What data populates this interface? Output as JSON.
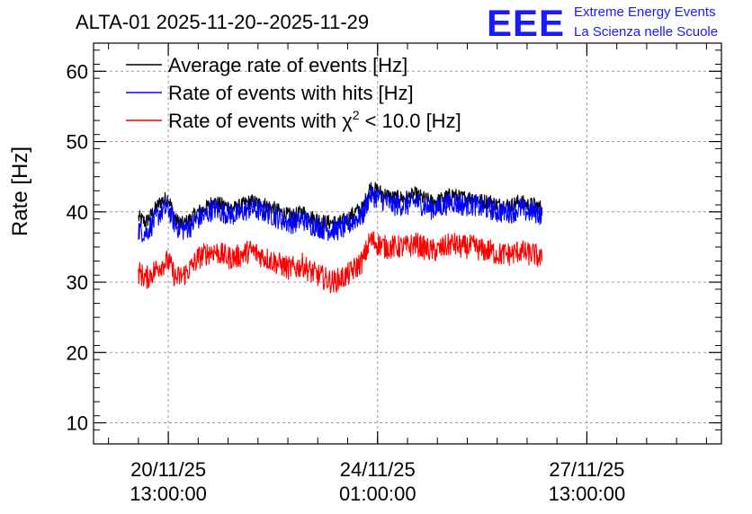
{
  "logo": {
    "mark": "EEE",
    "line1": "Extreme Energy Events",
    "line2": "La Scienza nelle Scuole"
  },
  "chart_data": {
    "type": "line",
    "title": "ALTA-01 2025-11-20--2025-11-29",
    "ylabel": "Rate [Hz]",
    "xlabel": "",
    "ylim": [
      7,
      64
    ],
    "yticks": [
      10,
      20,
      30,
      40,
      50,
      60
    ],
    "xlim_hours_from_start": [
      -18,
      234
    ],
    "x_tick_labels": [
      {
        "hours": 12,
        "date": "20/11/25",
        "time": "13:00:00"
      },
      {
        "hours": 96,
        "date": "24/11/25",
        "time": "01:00:00"
      },
      {
        "hours": 180,
        "date": "27/11/25",
        "time": "13:00:00"
      }
    ],
    "grid": true,
    "legend_position": "top-left",
    "sample_step_hours": 3,
    "series": [
      {
        "name": "Average rate of events [Hz]",
        "legend_prefix": "Average rate of events [Hz]",
        "legend_superscript": "",
        "legend_suffix": "",
        "color": "#000000",
        "noise": 1.1,
        "x_start": 0,
        "values": [
          39.2,
          38.5,
          40.0,
          41.5,
          42.0,
          38.8,
          38.2,
          39.0,
          40.0,
          40.5,
          41.5,
          41.0,
          40.8,
          40.5,
          41.0,
          41.5,
          41.2,
          41.0,
          40.5,
          40.0,
          39.5,
          39.5,
          40.0,
          39.2,
          39.0,
          38.5,
          38.5,
          38.5,
          39.0,
          40.0,
          40.5,
          43.5,
          43.0,
          42.5,
          42.0,
          42.0,
          42.0,
          42.5,
          42.0,
          41.5,
          41.5,
          42.0,
          42.5,
          42.0,
          42.0,
          42.0,
          41.5,
          41.5,
          41.0,
          41.0,
          41.0,
          41.5,
          41.0,
          41.0,
          40.5
        ]
      },
      {
        "name": "Rate of events with hits [Hz]",
        "legend_prefix": "Rate of events with hits [Hz]",
        "legend_superscript": "",
        "legend_suffix": "",
        "color": "#0000ff",
        "noise": 1.6,
        "x_start": 0,
        "values": [
          37.5,
          37.0,
          38.5,
          40.0,
          40.5,
          38.0,
          37.5,
          38.0,
          39.0,
          39.5,
          40.5,
          40.0,
          39.8,
          39.5,
          40.0,
          40.5,
          40.2,
          40.0,
          39.5,
          39.0,
          38.5,
          38.5,
          39.0,
          38.2,
          38.0,
          37.5,
          37.5,
          37.5,
          38.0,
          39.0,
          39.5,
          42.5,
          42.0,
          41.5,
          41.0,
          41.0,
          41.0,
          41.5,
          41.0,
          40.5,
          40.5,
          41.0,
          41.5,
          41.0,
          41.0,
          41.0,
          40.5,
          40.5,
          40.0,
          40.0,
          40.0,
          40.5,
          40.0,
          40.0,
          39.5
        ]
      },
      {
        "name": "Rate of events with χ² < 10.0 [Hz]",
        "legend_prefix": "Rate of events with χ",
        "legend_superscript": "2",
        "legend_suffix": " < 10.0 [Hz]",
        "color": "#ff0000",
        "noise": 1.7,
        "x_start": 0,
        "values": [
          31.5,
          30.5,
          31.5,
          32.5,
          33.0,
          30.5,
          31.0,
          32.0,
          33.5,
          34.0,
          34.5,
          34.0,
          33.5,
          33.5,
          34.0,
          34.5,
          34.0,
          33.5,
          33.0,
          32.5,
          32.0,
          32.0,
          32.5,
          31.5,
          31.0,
          30.5,
          30.0,
          30.5,
          31.0,
          32.0,
          33.0,
          36.0,
          35.5,
          35.0,
          35.0,
          35.0,
          35.0,
          35.5,
          35.0,
          34.5,
          34.5,
          35.0,
          35.5,
          35.0,
          35.0,
          35.0,
          34.5,
          34.5,
          34.0,
          34.0,
          34.0,
          34.5,
          34.0,
          34.0,
          33.0
        ]
      }
    ]
  }
}
